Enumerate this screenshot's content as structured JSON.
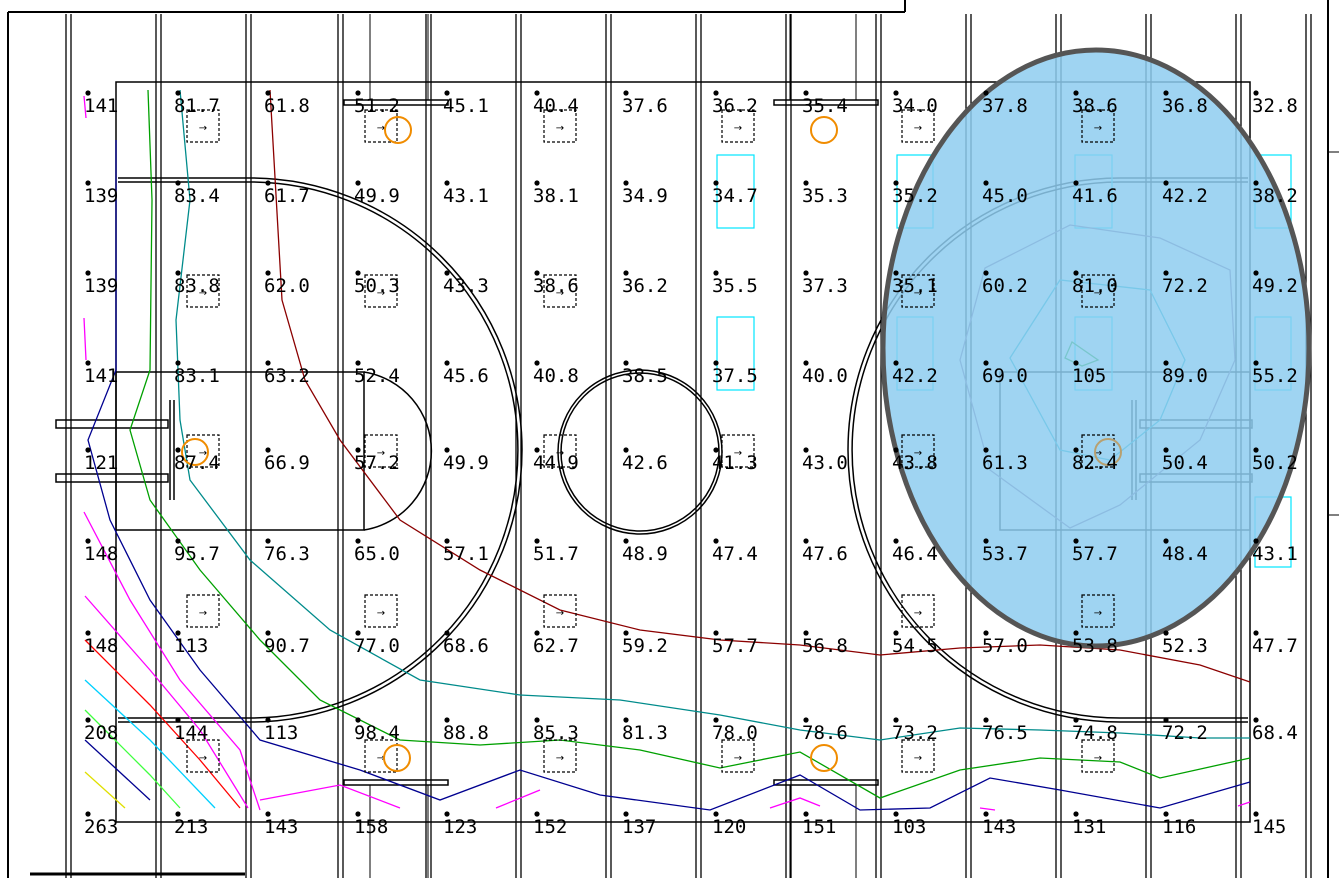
{
  "grid": {
    "rows": [
      [
        "141",
        "81.7",
        "61.8",
        "51.2",
        "45.1",
        "40.4",
        "37.6",
        "36.2",
        "35.4",
        "34.0",
        "37.8",
        "38.6",
        "36.8",
        "32.8"
      ],
      [
        "139",
        "83.4",
        "61.7",
        "49.9",
        "43.1",
        "38.1",
        "34.9",
        "34.7",
        "35.3",
        "35.2",
        "45.0",
        "41.6",
        "42.2",
        "38.2"
      ],
      [
        "139",
        "83.8",
        "62.0",
        "50.3",
        "43.3",
        "38.6",
        "36.2",
        "35.5",
        "37.3",
        "35.1",
        "60.2",
        "81.0",
        "72.2",
        "49.2"
      ],
      [
        "141",
        "83.1",
        "63.2",
        "52.4",
        "45.6",
        "40.8",
        "38.5",
        "37.5",
        "40.0",
        "42.2",
        "69.0",
        "105",
        "89.0",
        "55.2"
      ],
      [
        "121",
        "87.4",
        "66.9",
        "57.2",
        "49.9",
        "44.9",
        "42.6",
        "41.3",
        "43.0",
        "43.8",
        "61.3",
        "82.4",
        "50.4",
        "50.2"
      ],
      [
        "148",
        "95.7",
        "76.3",
        "65.0",
        "57.1",
        "51.7",
        "48.9",
        "47.4",
        "47.6",
        "46.4",
        "53.7",
        "57.7",
        "48.4",
        "43.1"
      ],
      [
        "148",
        "113",
        "90.7",
        "77.0",
        "68.6",
        "62.7",
        "59.2",
        "57.7",
        "56.8",
        "54.5",
        "57.0",
        "53.8",
        "52.3",
        "47.7"
      ],
      [
        "208",
        "144",
        "113",
        "98.4",
        "88.8",
        "85.3",
        "81.3",
        "78.0",
        "78.6",
        "73.2",
        "76.5",
        "74.8",
        "72.2",
        "68.4"
      ],
      [
        "263",
        "213",
        "143",
        "158",
        "123",
        "152",
        "137",
        "120",
        "151",
        "103",
        "143",
        "131",
        "116",
        "145"
      ]
    ]
  },
  "colors": {
    "highlight_fill": "#8ecdf0",
    "highlight_stroke": "#555555",
    "fixture_circle": "#f08c00",
    "cyan_box": "#00e5ff",
    "contour_red": "#8b0000",
    "contour_teal": "#008b8b",
    "contour_green": "#00a000",
    "contour_blue": "#000090",
    "contour_magenta": "#ff00ff",
    "contour_purple": "#806090"
  },
  "icons": [
    "court-line",
    "fixture-box-icon",
    "fixture-circle-icon",
    "measure-point-icon",
    "highlight-ellipse"
  ]
}
